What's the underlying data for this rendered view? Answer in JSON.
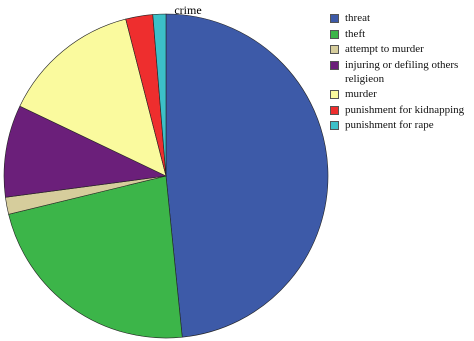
{
  "chart_data": {
    "type": "pie",
    "title": "crime",
    "categories": [
      "threat",
      "theft",
      "attempt to murder",
      "injuring or defiling others religieon",
      "murder",
      "punishment for kidnapping",
      "punishment for rape"
    ],
    "values": [
      48.4,
      22.8,
      1.7,
      9.2,
      13.9,
      2.7,
      1.3
    ],
    "colors": [
      "#3d5aa8",
      "#3cb549",
      "#d6cd9c",
      "#6b1f7a",
      "#fafa9e",
      "#ee2e2e",
      "#3cc0c8"
    ]
  }
}
